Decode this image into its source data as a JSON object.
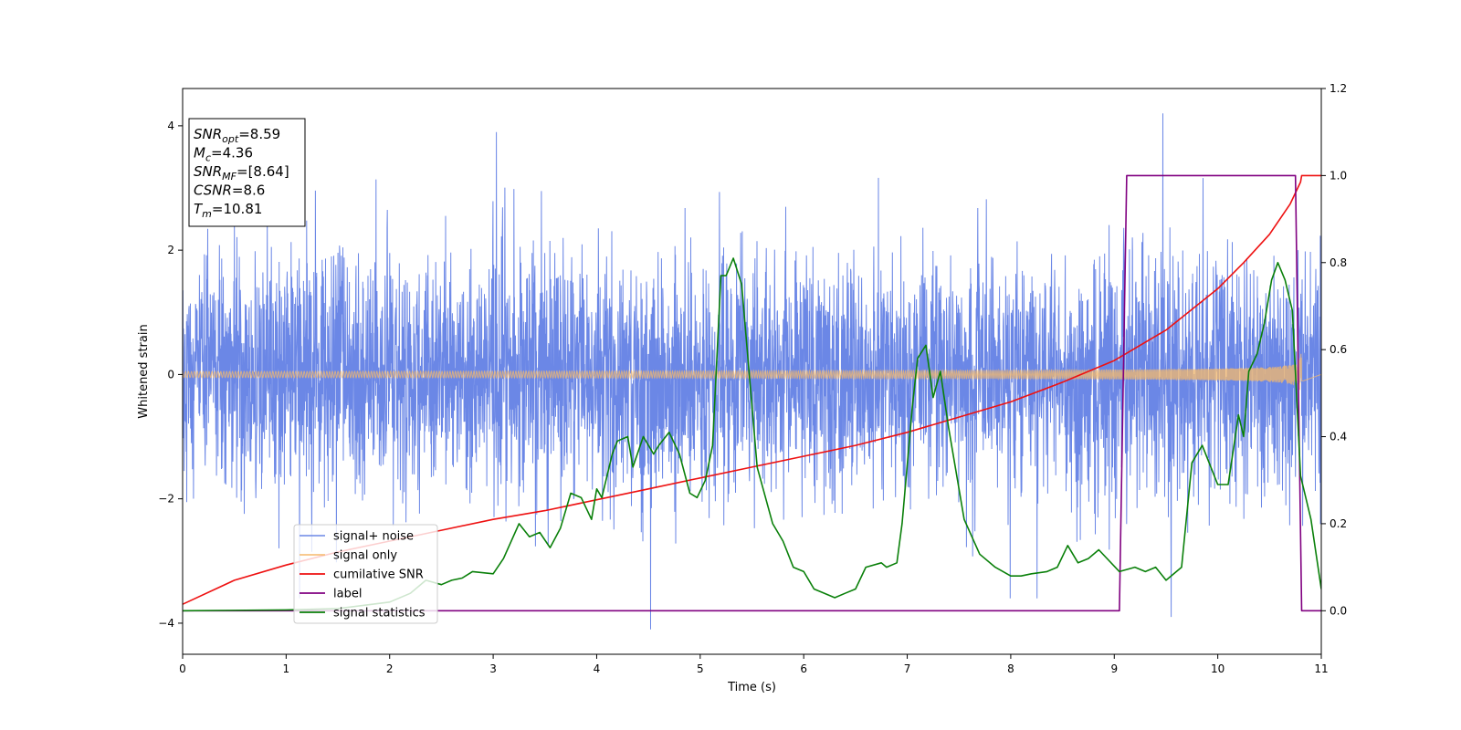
{
  "chart_data": {
    "type": "line",
    "xlabel": "Time (s)",
    "ylabel": "Whitened strain",
    "xlim": [
      0,
      11
    ],
    "ylim": [
      -4.5,
      4.6
    ],
    "y2lim": [
      -0.1,
      1.2
    ],
    "x_ticks": [
      0,
      1,
      2,
      3,
      4,
      5,
      6,
      7,
      8,
      9,
      10,
      11
    ],
    "y_ticks": [
      -4,
      -2,
      0,
      2,
      4
    ],
    "y2_ticks": [
      "0.0",
      "0.2",
      "0.4",
      "0.6",
      "0.8",
      "1.0",
      "1.2"
    ],
    "grid": false,
    "legend_placement": "lower-left",
    "annotation": [
      {
        "base": "SNR",
        "sub": "opt",
        "value": "=8.59"
      },
      {
        "base": "M",
        "sub": "c",
        "value": "=4.36"
      },
      {
        "base": "SNR",
        "sub": "MF",
        "value": "=[8.64]"
      },
      {
        "base": "CSNR",
        "sub": "",
        "value": "=8.6"
      },
      {
        "base": "T",
        "sub": "m",
        "value": "=10.81"
      }
    ],
    "series": [
      {
        "name": "signal+ noise",
        "color": "#6b87e6",
        "axis": "left",
        "kind": "noise",
        "noise_std": 0.95,
        "peak_x": [
          3.03,
          4.52,
          9.47,
          9.55
        ],
        "peak_y": [
          3.9,
          -4.1,
          4.2,
          -3.9
        ]
      },
      {
        "name": "signal only",
        "color": "#f5b96b",
        "axis": "left",
        "kind": "chirp",
        "amplitude_start": 0.05,
        "amplitude_end": 0.9,
        "merger_time": 10.81
      },
      {
        "name": "cumilative SNR",
        "color": "#ee1111",
        "axis": "right",
        "x": [
          0,
          0.5,
          1,
          1.5,
          2,
          2.5,
          3,
          3.5,
          4,
          4.5,
          5,
          5.5,
          6,
          6.5,
          7,
          7.5,
          8,
          8.5,
          9,
          9.5,
          10,
          10.25,
          10.5,
          10.7,
          10.8,
          10.81,
          11
        ],
        "y": [
          0.015,
          0.07,
          0.105,
          0.135,
          0.16,
          0.185,
          0.21,
          0.23,
          0.255,
          0.28,
          0.305,
          0.33,
          0.355,
          0.38,
          0.41,
          0.445,
          0.48,
          0.525,
          0.575,
          0.645,
          0.74,
          0.8,
          0.865,
          0.935,
          0.985,
          1.0,
          1.0
        ]
      },
      {
        "name": "label",
        "color": "#800080",
        "axis": "right",
        "x": [
          0,
          9.05,
          9.12,
          10.75,
          10.81,
          11
        ],
        "y": [
          0,
          0,
          1,
          1,
          0,
          0
        ]
      },
      {
        "name": "signal statistics",
        "color": "#0a800a",
        "axis": "right",
        "x": [
          0,
          1,
          1.5,
          2,
          2.2,
          2.35,
          2.5,
          2.6,
          2.7,
          2.8,
          3.0,
          3.1,
          3.25,
          3.35,
          3.45,
          3.55,
          3.65,
          3.75,
          3.85,
          3.95,
          4.0,
          4.05,
          4.15,
          4.2,
          4.3,
          4.35,
          4.45,
          4.55,
          4.6,
          4.7,
          4.8,
          4.9,
          4.97,
          5.05,
          5.12,
          5.2,
          5.25,
          5.32,
          5.4,
          5.55,
          5.7,
          5.8,
          5.9,
          6.0,
          6.1,
          6.2,
          6.3,
          6.4,
          6.5,
          6.6,
          6.75,
          6.8,
          6.9,
          6.95,
          7.05,
          7.1,
          7.18,
          7.25,
          7.32,
          7.4,
          7.55,
          7.7,
          7.85,
          8.0,
          8.1,
          8.2,
          8.35,
          8.45,
          8.55,
          8.65,
          8.75,
          8.85,
          9.05,
          9.2,
          9.3,
          9.4,
          9.5,
          9.65,
          9.75,
          9.85,
          10.0,
          10.1,
          10.2,
          10.25,
          10.3,
          10.38,
          10.45,
          10.52,
          10.58,
          10.65,
          10.72,
          10.8,
          10.9,
          11
        ],
        "y": [
          0,
          0.002,
          0.005,
          0.02,
          0.04,
          0.07,
          0.06,
          0.07,
          0.075,
          0.09,
          0.085,
          0.12,
          0.2,
          0.17,
          0.18,
          0.145,
          0.19,
          0.27,
          0.26,
          0.21,
          0.28,
          0.26,
          0.36,
          0.39,
          0.4,
          0.33,
          0.4,
          0.36,
          0.38,
          0.41,
          0.36,
          0.27,
          0.26,
          0.3,
          0.38,
          0.77,
          0.77,
          0.81,
          0.75,
          0.33,
          0.2,
          0.16,
          0.1,
          0.09,
          0.05,
          0.04,
          0.03,
          0.04,
          0.05,
          0.1,
          0.11,
          0.1,
          0.11,
          0.2,
          0.47,
          0.58,
          0.61,
          0.49,
          0.55,
          0.42,
          0.21,
          0.13,
          0.1,
          0.08,
          0.08,
          0.085,
          0.09,
          0.1,
          0.15,
          0.11,
          0.12,
          0.14,
          0.09,
          0.1,
          0.09,
          0.1,
          0.07,
          0.1,
          0.34,
          0.38,
          0.29,
          0.29,
          0.45,
          0.4,
          0.55,
          0.59,
          0.66,
          0.76,
          0.8,
          0.76,
          0.69,
          0.31,
          0.21,
          0.05
        ]
      }
    ]
  }
}
